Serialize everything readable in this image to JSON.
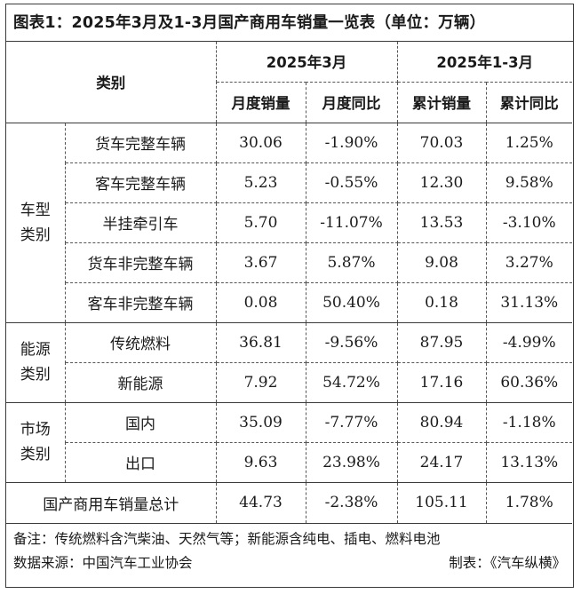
{
  "title": "图表1：2025年3月及1-3月国产商用车销量一览表（单位：万辆）",
  "header": {
    "category": "类别",
    "period_month": "2025年3月",
    "period_ytd": "2025年1-3月",
    "columns": [
      "月度销量",
      "月度同比",
      "累计销量",
      "累计同比"
    ]
  },
  "groups": [
    {
      "name_line1": "车型",
      "name_line2": "类别",
      "rows": [
        {
          "item": "货车完整车辆",
          "monthly_sales": "30.06",
          "monthly_yoy": "-1.90%",
          "ytd_sales": "70.03",
          "ytd_yoy": "1.25%"
        },
        {
          "item": "客车完整车辆",
          "monthly_sales": "5.23",
          "monthly_yoy": "-0.55%",
          "ytd_sales": "12.30",
          "ytd_yoy": "9.58%"
        },
        {
          "item": "半挂牵引车",
          "monthly_sales": "5.70",
          "monthly_yoy": "-11.07%",
          "ytd_sales": "13.53",
          "ytd_yoy": "-3.10%"
        },
        {
          "item": "货车非完整车辆",
          "monthly_sales": "3.67",
          "monthly_yoy": "5.87%",
          "ytd_sales": "9.08",
          "ytd_yoy": "3.27%"
        },
        {
          "item": "客车非完整车辆",
          "monthly_sales": "0.08",
          "monthly_yoy": "50.40%",
          "ytd_sales": "0.18",
          "ytd_yoy": "31.13%"
        }
      ]
    },
    {
      "name_line1": "能源",
      "name_line2": "类别",
      "rows": [
        {
          "item": "传统燃料",
          "monthly_sales": "36.81",
          "monthly_yoy": "-9.56%",
          "ytd_sales": "87.95",
          "ytd_yoy": "-4.99%"
        },
        {
          "item": "新能源",
          "monthly_sales": "7.92",
          "monthly_yoy": "54.72%",
          "ytd_sales": "17.16",
          "ytd_yoy": "60.36%"
        }
      ]
    },
    {
      "name_line1": "市场",
      "name_line2": "类别",
      "rows": [
        {
          "item": "国内",
          "monthly_sales": "35.09",
          "monthly_yoy": "-7.77%",
          "ytd_sales": "80.94",
          "ytd_yoy": "-1.18%"
        },
        {
          "item": "出口",
          "monthly_sales": "9.63",
          "monthly_yoy": "23.98%",
          "ytd_sales": "24.17",
          "ytd_yoy": "13.13%"
        }
      ]
    }
  ],
  "total": {
    "label": "国产商用车销量总计",
    "monthly_sales": "44.73",
    "monthly_yoy": "-2.38%",
    "ytd_sales": "105.11",
    "ytd_yoy": "1.78%"
  },
  "notes": {
    "remark": "备注：传统燃料含汽柴油、天然气等；新能源含纯电、插电、燃料电池",
    "source": "数据来源：中国汽车工业协会",
    "maker": "制表：《汽车纵横》"
  }
}
